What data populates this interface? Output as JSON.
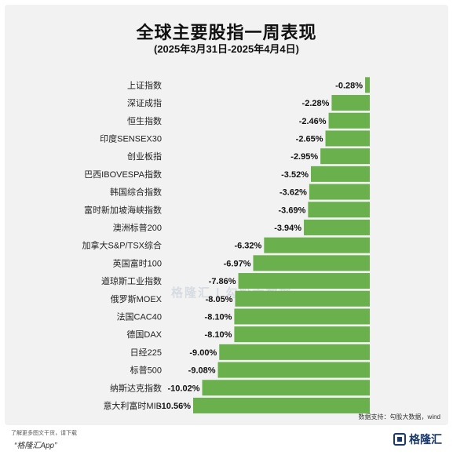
{
  "title": "全球主要股指一周表现",
  "subtitle": "(2025年3月31日-2025年4月4日)",
  "source": "数据支持：勾股大数据，wind",
  "footer": {
    "line1": "了解更多图文干货，请下载",
    "line2": "“格隆汇App”",
    "brand": "格隆汇"
  },
  "watermark": "格隆汇 | 勾股大数据",
  "colors": {
    "bar": "#6ab04c",
    "background": "#f2f2f2"
  },
  "chart_data": {
    "type": "bar",
    "orientation": "horizontal",
    "categories": [
      "上证指数",
      "深证成指",
      "恒生指数",
      "印度SENSEX30",
      "创业板指",
      "巴西IBOVESPA指数",
      "韩国综合指数",
      "富时新加坡海峡指数",
      "澳洲标普200",
      "加拿大S&P/TSX综合",
      "英国富时100",
      "道琼斯工业指数",
      "俄罗斯MOEX",
      "法国CAC40",
      "德国DAX",
      "日经225",
      "标普500",
      "纳斯达克指数",
      "意大利富时MIB"
    ],
    "values": [
      -0.28,
      -2.28,
      -2.46,
      -2.65,
      -2.95,
      -3.52,
      -3.62,
      -3.69,
      -3.94,
      -6.32,
      -6.97,
      -7.86,
      -8.05,
      -8.1,
      -8.1,
      -9.0,
      -9.08,
      -10.02,
      -10.56
    ],
    "labels": [
      "-0.28%",
      "-2.28%",
      "-2.46%",
      "-2.65%",
      "-2.95%",
      "-3.52%",
      "-3.62%",
      "-3.69%",
      "-3.94%",
      "-6.32%",
      "-6.97%",
      "-7.86%",
      "-8.05%",
      "-8.10%",
      "-8.10%",
      "-9.00%",
      "-9.08%",
      "-10.02%",
      "-10.56%"
    ],
    "unit": "%",
    "xlim": [
      -10.56,
      0
    ],
    "grid": false,
    "legend": "none"
  }
}
